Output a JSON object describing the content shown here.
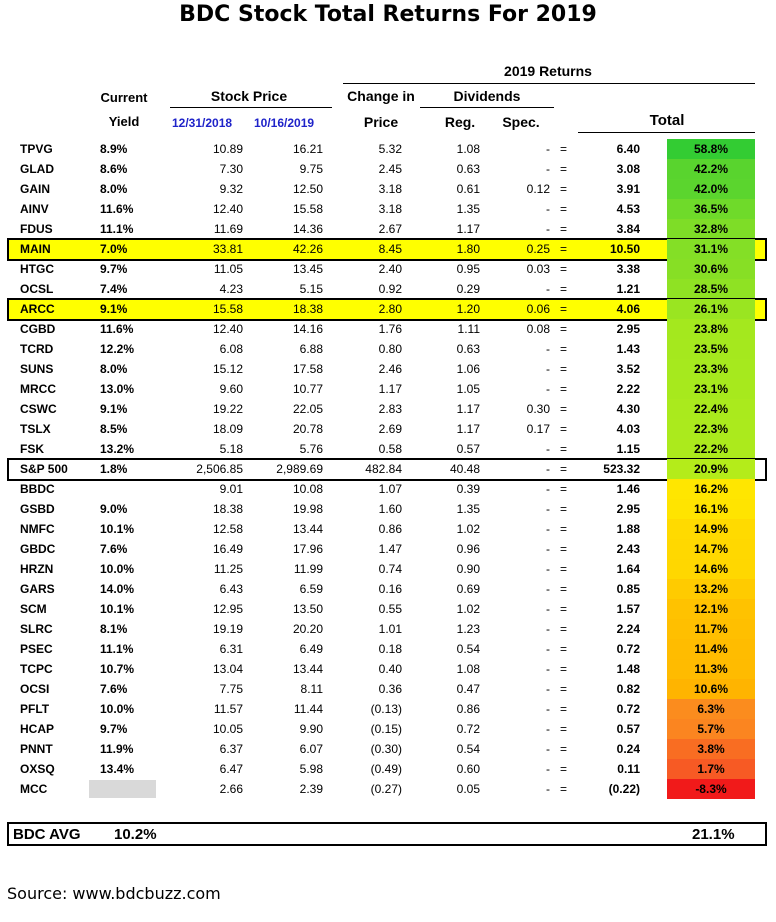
{
  "title": "BDC Stock Total Returns For 2019",
  "headers": {
    "returns_2019": "2019 Returns",
    "current": "Current",
    "yield": "Yield",
    "stock_price": "Stock Price",
    "date1": "12/31/2018",
    "date2": "10/16/2019",
    "change_in": "Change in",
    "price": "Price",
    "dividends": "Dividends",
    "reg": "Reg.",
    "spec": "Spec.",
    "total": "Total"
  },
  "rows": [
    {
      "ticker": "TPVG",
      "yield": "8.9%",
      "p1": "10.89",
      "p2": "16.21",
      "chg": "5.32",
      "reg": "1.08",
      "spec": "-",
      "eq": "=",
      "sum": "6.40",
      "total": "58.8%",
      "color": "#33cc33"
    },
    {
      "ticker": "GLAD",
      "yield": "8.6%",
      "p1": "7.30",
      "p2": "9.75",
      "chg": "2.45",
      "reg": "0.63",
      "spec": "-",
      "eq": "=",
      "sum": "3.08",
      "total": "42.2%",
      "color": "#59d42e"
    },
    {
      "ticker": "GAIN",
      "yield": "8.0%",
      "p1": "9.32",
      "p2": "12.50",
      "chg": "3.18",
      "reg": "0.61",
      "spec": "0.12",
      "eq": "=",
      "sum": "3.91",
      "total": "42.0%",
      "color": "#5bd52e"
    },
    {
      "ticker": "AINV",
      "yield": "11.6%",
      "p1": "12.40",
      "p2": "15.58",
      "chg": "3.18",
      "reg": "1.35",
      "spec": "-",
      "eq": "=",
      "sum": "4.53",
      "total": "36.5%",
      "color": "#6fda2a"
    },
    {
      "ticker": "FDUS",
      "yield": "11.1%",
      "p1": "11.69",
      "p2": "14.36",
      "chg": "2.67",
      "reg": "1.17",
      "spec": "-",
      "eq": "=",
      "sum": "3.84",
      "total": "32.8%",
      "color": "#7edd27"
    },
    {
      "ticker": "MAIN",
      "yield": "7.0%",
      "p1": "33.81",
      "p2": "42.26",
      "chg": "8.45",
      "reg": "1.80",
      "spec": "0.25",
      "eq": "=",
      "sum": "10.50",
      "total": "31.1%",
      "color": "#84df26",
      "highlight": true
    },
    {
      "ticker": "HTGC",
      "yield": "9.7%",
      "p1": "11.05",
      "p2": "13.45",
      "chg": "2.40",
      "reg": "0.95",
      "spec": "0.03",
      "eq": "=",
      "sum": "3.38",
      "total": "30.6%",
      "color": "#87df25"
    },
    {
      "ticker": "OCSL",
      "yield": "7.4%",
      "p1": "4.23",
      "p2": "5.15",
      "chg": "0.92",
      "reg": "0.29",
      "spec": "-",
      "eq": "=",
      "sum": "1.21",
      "total": "28.5%",
      "color": "#8fe223"
    },
    {
      "ticker": "ARCC",
      "yield": "9.1%",
      "p1": "15.58",
      "p2": "18.38",
      "chg": "2.80",
      "reg": "1.20",
      "spec": "0.06",
      "eq": "=",
      "sum": "4.06",
      "total": "26.1%",
      "color": "#9ae521",
      "highlight": true
    },
    {
      "ticker": "CGBD",
      "yield": "11.6%",
      "p1": "12.40",
      "p2": "14.16",
      "chg": "1.76",
      "reg": "1.11",
      "spec": "0.08",
      "eq": "=",
      "sum": "2.95",
      "total": "23.8%",
      "color": "#a4e81e"
    },
    {
      "ticker": "TCRD",
      "yield": "12.2%",
      "p1": "6.08",
      "p2": "6.88",
      "chg": "0.80",
      "reg": "0.63",
      "spec": "-",
      "eq": "=",
      "sum": "1.43",
      "total": "23.5%",
      "color": "#a5e81e"
    },
    {
      "ticker": "SUNS",
      "yield": "8.0%",
      "p1": "15.12",
      "p2": "17.58",
      "chg": "2.46",
      "reg": "1.06",
      "spec": "-",
      "eq": "=",
      "sum": "3.52",
      "total": "23.3%",
      "color": "#a6e91e"
    },
    {
      "ticker": "MRCC",
      "yield": "13.0%",
      "p1": "9.60",
      "p2": "10.77",
      "chg": "1.17",
      "reg": "1.05",
      "spec": "-",
      "eq": "=",
      "sum": "2.22",
      "total": "23.1%",
      "color": "#a7e91d"
    },
    {
      "ticker": "CSWC",
      "yield": "9.1%",
      "p1": "19.22",
      "p2": "22.05",
      "chg": "2.83",
      "reg": "1.17",
      "spec": "0.30",
      "eq": "=",
      "sum": "4.30",
      "total": "22.4%",
      "color": "#aaea1d"
    },
    {
      "ticker": "TSLX",
      "yield": "8.5%",
      "p1": "18.09",
      "p2": "20.78",
      "chg": "2.69",
      "reg": "1.17",
      "spec": "0.17",
      "eq": "=",
      "sum": "4.03",
      "total": "22.3%",
      "color": "#abea1d"
    },
    {
      "ticker": "FSK",
      "yield": "13.2%",
      "p1": "5.18",
      "p2": "5.76",
      "chg": "0.58",
      "reg": "0.57",
      "spec": "-",
      "eq": "=",
      "sum": "1.15",
      "total": "22.2%",
      "color": "#acea1c"
    },
    {
      "ticker": "S&P 500",
      "yield": "1.8%",
      "p1": "2,506.85",
      "p2": "2,989.69",
      "chg": "482.84",
      "reg": "40.48",
      "spec": "-",
      "eq": "=",
      "sum": "523.32",
      "total": "20.9%",
      "color": "#b4ec1a",
      "boxed": true
    },
    {
      "ticker": "BBDC",
      "yield": "",
      "p1": "9.01",
      "p2": "10.08",
      "chg": "1.07",
      "reg": "0.39",
      "spec": "-",
      "eq": "=",
      "sum": "1.46",
      "total": "16.2%",
      "color": "#ffe600"
    },
    {
      "ticker": "GSBD",
      "yield": "9.0%",
      "p1": "18.38",
      "p2": "19.98",
      "chg": "1.60",
      "reg": "1.35",
      "spec": "-",
      "eq": "=",
      "sum": "2.95",
      "total": "16.1%",
      "color": "#ffe400"
    },
    {
      "ticker": "NMFC",
      "yield": "10.1%",
      "p1": "12.58",
      "p2": "13.44",
      "chg": "0.86",
      "reg": "1.02",
      "spec": "-",
      "eq": "=",
      "sum": "1.88",
      "total": "14.9%",
      "color": "#ffda00"
    },
    {
      "ticker": "GBDC",
      "yield": "7.6%",
      "p1": "16.49",
      "p2": "17.96",
      "chg": "1.47",
      "reg": "0.96",
      "spec": "-",
      "eq": "=",
      "sum": "2.43",
      "total": "14.7%",
      "color": "#ffd800"
    },
    {
      "ticker": "HRZN",
      "yield": "10.0%",
      "p1": "11.25",
      "p2": "11.99",
      "chg": "0.74",
      "reg": "0.90",
      "spec": "-",
      "eq": "=",
      "sum": "1.64",
      "total": "14.6%",
      "color": "#ffd700"
    },
    {
      "ticker": "GARS",
      "yield": "14.0%",
      "p1": "6.43",
      "p2": "6.59",
      "chg": "0.16",
      "reg": "0.69",
      "spec": "-",
      "eq": "=",
      "sum": "0.85",
      "total": "13.2%",
      "color": "#ffcb00"
    },
    {
      "ticker": "SCM",
      "yield": "10.1%",
      "p1": "12.95",
      "p2": "13.50",
      "chg": "0.55",
      "reg": "1.02",
      "spec": "-",
      "eq": "=",
      "sum": "1.57",
      "total": "12.1%",
      "color": "#ffc200"
    },
    {
      "ticker": "SLRC",
      "yield": "8.1%",
      "p1": "19.19",
      "p2": "20.20",
      "chg": "1.01",
      "reg": "1.23",
      "spec": "-",
      "eq": "=",
      "sum": "2.24",
      "total": "11.7%",
      "color": "#ffbf00"
    },
    {
      "ticker": "PSEC",
      "yield": "11.1%",
      "p1": "6.31",
      "p2": "6.49",
      "chg": "0.18",
      "reg": "0.54",
      "spec": "-",
      "eq": "=",
      "sum": "0.72",
      "total": "11.4%",
      "color": "#ffbc00"
    },
    {
      "ticker": "TCPC",
      "yield": "10.7%",
      "p1": "13.04",
      "p2": "13.44",
      "chg": "0.40",
      "reg": "1.08",
      "spec": "-",
      "eq": "=",
      "sum": "1.48",
      "total": "11.3%",
      "color": "#ffbb00"
    },
    {
      "ticker": "OCSI",
      "yield": "7.6%",
      "p1": "7.75",
      "p2": "8.11",
      "chg": "0.36",
      "reg": "0.47",
      "spec": "-",
      "eq": "=",
      "sum": "0.82",
      "total": "10.6%",
      "color": "#ffb400"
    },
    {
      "ticker": "PFLT",
      "yield": "10.0%",
      "p1": "11.57",
      "p2": "11.44",
      "chg": "(0.13)",
      "reg": "0.86",
      "spec": "-",
      "eq": "=",
      "sum": "0.72",
      "total": "6.3%",
      "color": "#fb8c1e"
    },
    {
      "ticker": "HCAP",
      "yield": "9.7%",
      "p1": "10.05",
      "p2": "9.90",
      "chg": "(0.15)",
      "reg": "0.72",
      "spec": "-",
      "eq": "=",
      "sum": "0.57",
      "total": "5.7%",
      "color": "#fb8520"
    },
    {
      "ticker": "PNNT",
      "yield": "11.9%",
      "p1": "6.37",
      "p2": "6.07",
      "chg": "(0.30)",
      "reg": "0.54",
      "spec": "-",
      "eq": "=",
      "sum": "0.24",
      "total": "3.8%",
      "color": "#f96d22"
    },
    {
      "ticker": "OXSQ",
      "yield": "13.4%",
      "p1": "6.47",
      "p2": "5.98",
      "chg": "(0.49)",
      "reg": "0.60",
      "spec": "-",
      "eq": "=",
      "sum": "0.11",
      "total": "1.7%",
      "color": "#f75a24"
    },
    {
      "ticker": "MCC",
      "yield": "",
      "p1": "2.66",
      "p2": "2.39",
      "chg": "(0.27)",
      "reg": "0.05",
      "spec": "-",
      "eq": "=",
      "sum": "(0.22)",
      "total": "-8.3%",
      "color": "#f11a1a",
      "grey": true
    }
  ],
  "avg": {
    "label": "BDC AVG",
    "yield": "10.2%",
    "total": "21.1%"
  },
  "source": "Source: www.bdcbuzz.com"
}
